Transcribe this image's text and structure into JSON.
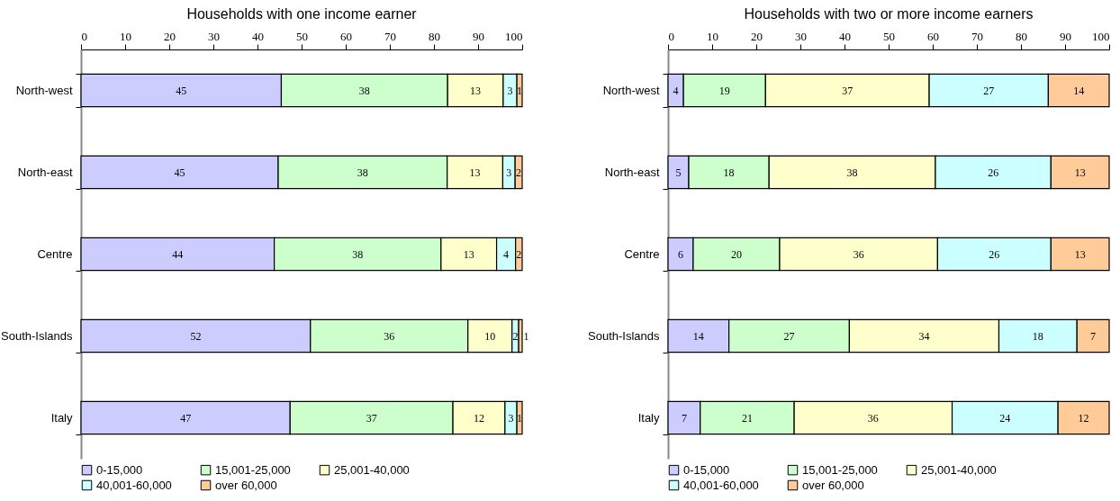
{
  "chart_data": [
    {
      "type": "bar",
      "title": "Households with one income earner",
      "orientation": "horizontal",
      "stacked": true,
      "categories": [
        "North-west",
        "North-east",
        "Centre",
        "South-Islands",
        "Italy"
      ],
      "xlim": [
        0,
        100
      ],
      "xticks": [
        0,
        10,
        20,
        30,
        40,
        50,
        60,
        70,
        80,
        90,
        100
      ],
      "grid": false,
      "legend": "bottom",
      "series": [
        {
          "name": "0-15,000",
          "color": "#ccccff",
          "values": [
            45.4,
            44.7,
            43.8,
            52.0,
            47.4
          ],
          "value_labels": [
            "45",
            "45",
            "44",
            "52",
            "47"
          ]
        },
        {
          "name": "15,001-25,000",
          "color": "#ccffcc",
          "values": [
            37.7,
            38.3,
            37.8,
            35.7,
            36.9
          ],
          "value_labels": [
            "38",
            "38",
            "38",
            "36",
            "37"
          ]
        },
        {
          "name": "25,001-40,000",
          "color": "#ffffcc",
          "values": [
            12.6,
            12.6,
            12.6,
            10.0,
            11.8
          ],
          "value_labels": [
            "13",
            "13",
            "13",
            "10",
            "12"
          ]
        },
        {
          "name": "40,001-60,000",
          "color": "#ccffff",
          "values": [
            3.1,
            2.8,
            4.3,
            1.5,
            2.7
          ],
          "value_labels": [
            "3",
            "3",
            "4",
            "2",
            "3"
          ]
        },
        {
          "name": "over 60,000",
          "color": "#ffcc99",
          "values": [
            1.2,
            1.6,
            1.5,
            0.8,
            1.2
          ],
          "value_labels": [
            "1",
            "2",
            "2",
            "1",
            "1"
          ]
        }
      ]
    },
    {
      "type": "bar",
      "title": "Households with two or more income earners",
      "orientation": "horizontal",
      "stacked": true,
      "categories": [
        "North-west",
        "North-east",
        "Centre",
        "South-Islands",
        "Italy"
      ],
      "xlim": [
        0,
        100
      ],
      "xticks": [
        0,
        10,
        20,
        30,
        40,
        50,
        60,
        70,
        80,
        90,
        100
      ],
      "grid": false,
      "legend": "bottom",
      "series": [
        {
          "name": "0-15,000",
          "color": "#ccccff",
          "values": [
            3.5,
            4.7,
            5.7,
            13.8,
            7.3
          ],
          "value_labels": [
            "4",
            "5",
            "6",
            "14",
            "7"
          ]
        },
        {
          "name": "15,001-25,000",
          "color": "#ccffcc",
          "values": [
            18.6,
            18.2,
            19.6,
            27.3,
            21.3
          ],
          "value_labels": [
            "19",
            "18",
            "20",
            "27",
            "21"
          ]
        },
        {
          "name": "25,001-40,000",
          "color": "#ffffcc",
          "values": [
            37.1,
            37.7,
            35.8,
            33.9,
            35.8
          ],
          "value_labels": [
            "37",
            "38",
            "36",
            "34",
            "36"
          ]
        },
        {
          "name": "40,001-60,000",
          "color": "#ccffff",
          "values": [
            27.0,
            26.2,
            25.7,
            17.7,
            24.0
          ],
          "value_labels": [
            "27",
            "26",
            "26",
            "18",
            "24"
          ]
        },
        {
          "name": "over 60,000",
          "color": "#ffcc99",
          "values": [
            13.8,
            13.2,
            13.2,
            7.3,
            11.6
          ],
          "value_labels": [
            "14",
            "13",
            "13",
            "7",
            "12"
          ]
        }
      ]
    }
  ]
}
